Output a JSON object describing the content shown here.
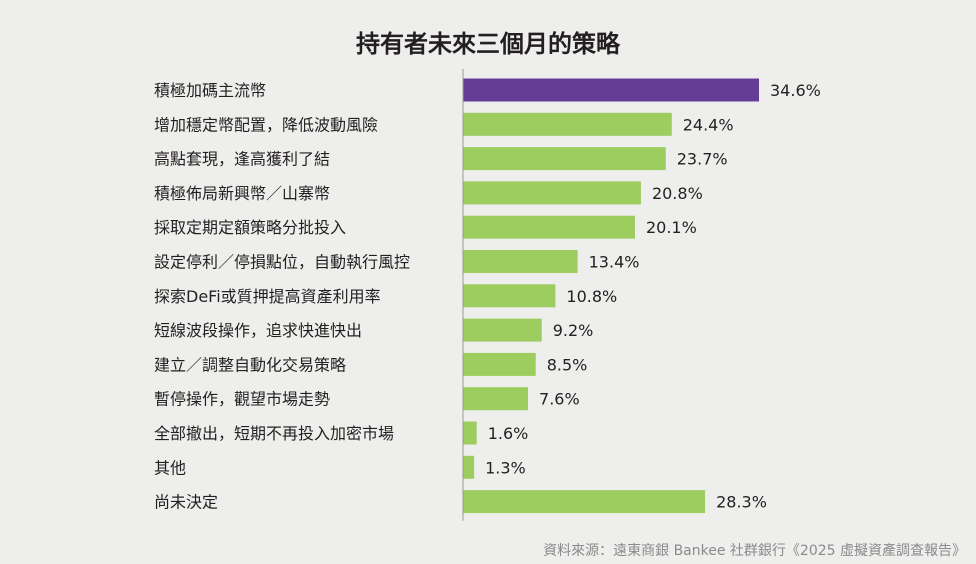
{
  "chart_data": {
    "type": "bar",
    "orientation": "horizontal",
    "title": "持有者未來三個月的策略",
    "categories": [
      "積極加碼主流幣",
      "增加穩定幣配置，降低波動風險",
      "高點套現，逢高獲利了結",
      "積極佈局新興幣／山寨幣",
      "採取定期定額策略分批投入",
      "設定停利／停損點位，自動執行風控",
      "探索DeFi或質押提高資產利用率",
      "短線波段操作，追求快進快出",
      "建立／調整自動化交易策略",
      "暫停操作，觀望市場走勢",
      "全部撤出，短期不再投入加密市場",
      "其他",
      "尚未決定"
    ],
    "values": [
      34.6,
      24.4,
      23.7,
      20.8,
      20.1,
      13.4,
      10.8,
      9.2,
      8.5,
      7.6,
      1.6,
      1.3,
      28.3
    ],
    "value_labels": [
      "34.6%",
      "24.4%",
      "23.7%",
      "20.8%",
      "20.1%",
      "13.4%",
      "10.8%",
      "9.2%",
      "8.5%",
      "7.6%",
      "1.6%",
      "1.3%",
      "28.3%"
    ],
    "unit": "%",
    "highlight_index": 0,
    "colors": {
      "highlight": "#663d96",
      "default": "#9dcc5f",
      "axis": "#999999"
    },
    "xlim": [
      0,
      34.6
    ],
    "grid": false
  },
  "source": "資料來源：遠東商銀 Bankee 社群銀行《2025 虛擬資產調查報告》"
}
